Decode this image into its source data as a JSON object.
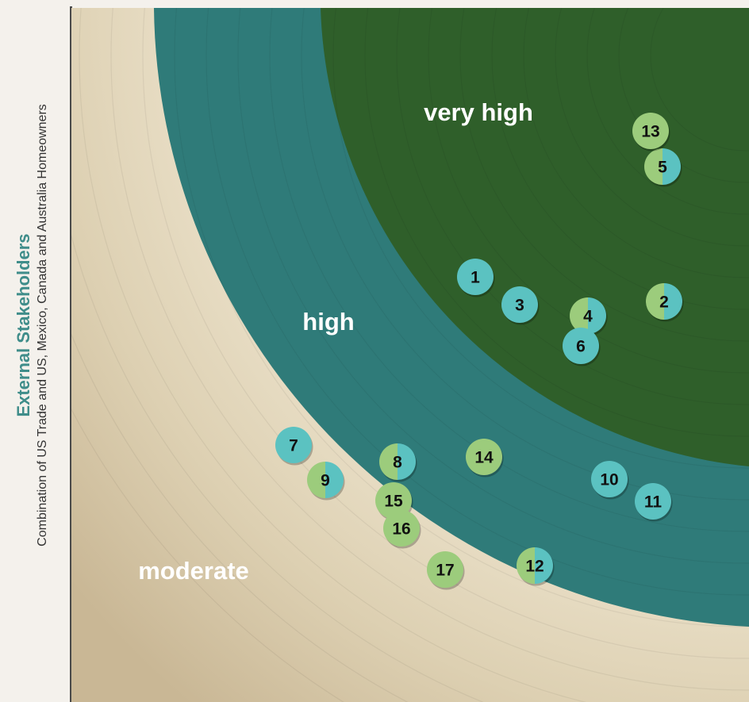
{
  "chart_data": {
    "type": "scatter",
    "title": "",
    "ylabel": "External Stakeholders",
    "ylabel_sub": "Combination of US Trade and US, Mexico, Canada and Australia Homeowners",
    "zones": [
      "very high",
      "high",
      "moderate"
    ],
    "colors": {
      "very_high": "#2f5f2a",
      "high": "#2f7b79",
      "moderate": "#e6dcc6",
      "teal_marker": "#5bc2c1",
      "green_marker": "#9ccc7c",
      "axis": "#4a4a4a"
    },
    "points": [
      {
        "id": "1",
        "marker": "teal"
      },
      {
        "id": "2",
        "marker": "split"
      },
      {
        "id": "3",
        "marker": "teal"
      },
      {
        "id": "4",
        "marker": "split"
      },
      {
        "id": "5",
        "marker": "split"
      },
      {
        "id": "6",
        "marker": "teal"
      },
      {
        "id": "7",
        "marker": "teal"
      },
      {
        "id": "8",
        "marker": "split"
      },
      {
        "id": "9",
        "marker": "split"
      },
      {
        "id": "10",
        "marker": "teal"
      },
      {
        "id": "11",
        "marker": "teal"
      },
      {
        "id": "12",
        "marker": "split"
      },
      {
        "id": "13",
        "marker": "green"
      },
      {
        "id": "14",
        "marker": "green"
      },
      {
        "id": "15",
        "marker": "green"
      },
      {
        "id": "16",
        "marker": "green"
      },
      {
        "id": "17",
        "marker": "green"
      }
    ]
  }
}
